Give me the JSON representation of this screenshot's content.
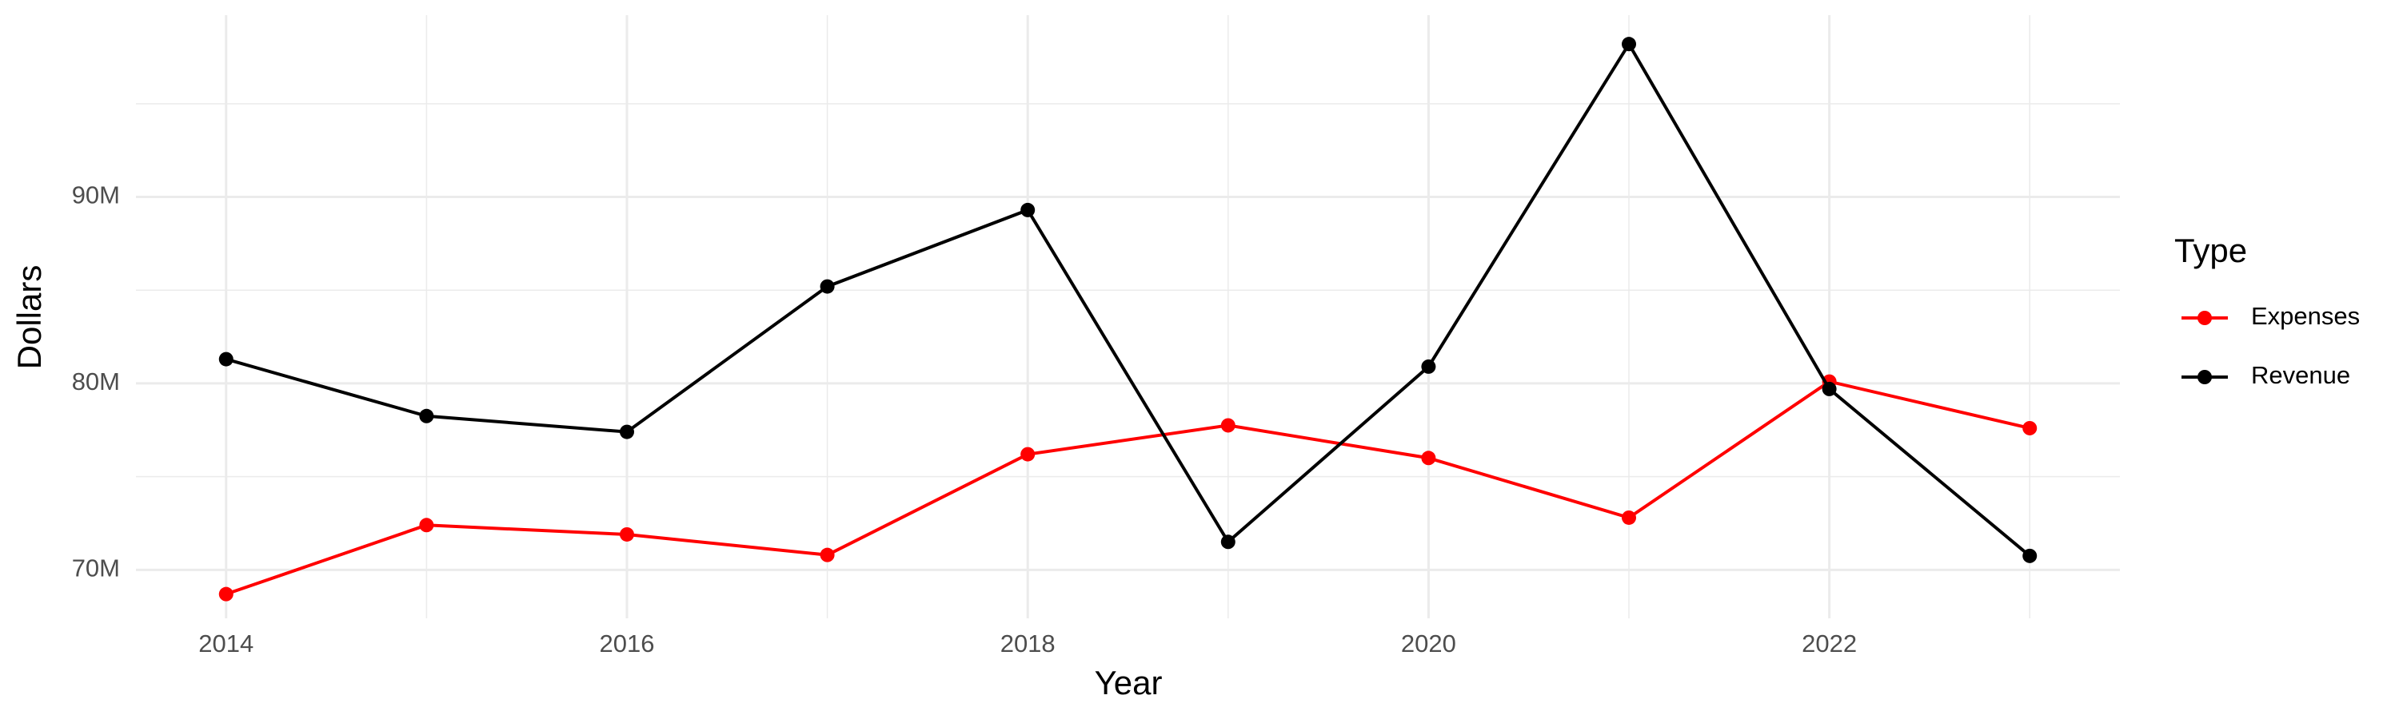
{
  "chart_data": {
    "type": "line",
    "x_label": "Year",
    "y_label": "Dollars",
    "x": [
      2014,
      2015,
      2016,
      2017,
      2018,
      2019,
      2020,
      2021,
      2022,
      2023
    ],
    "series": [
      {
        "name": "Expenses",
        "color": "#ff0000",
        "values": [
          68700000,
          72400000,
          71900000,
          70800000,
          76200000,
          77750000,
          76000000,
          72800000,
          80100000,
          77600000
        ]
      },
      {
        "name": "Revenue",
        "color": "#000000",
        "values": [
          81300000,
          78250000,
          77400000,
          85200000,
          89300000,
          71500000,
          80900000,
          98200000,
          79700000,
          70750000
        ]
      }
    ],
    "xlim": [
      2013.55,
      2023.45
    ],
    "xticks": [
      2014,
      2016,
      2018,
      2020,
      2022
    ],
    "xminor": [
      2015,
      2017,
      2019,
      2021,
      2023
    ],
    "ylim": [
      67400000,
      99750000
    ],
    "yticks": [
      {
        "value": 70000000,
        "label": "70M"
      },
      {
        "value": 80000000,
        "label": "80M"
      },
      {
        "value": 90000000,
        "label": "90M"
      }
    ],
    "yminor": [
      75000000,
      85000000,
      95000000
    ],
    "grid": true,
    "legend_title": "Type",
    "legend": "right"
  }
}
